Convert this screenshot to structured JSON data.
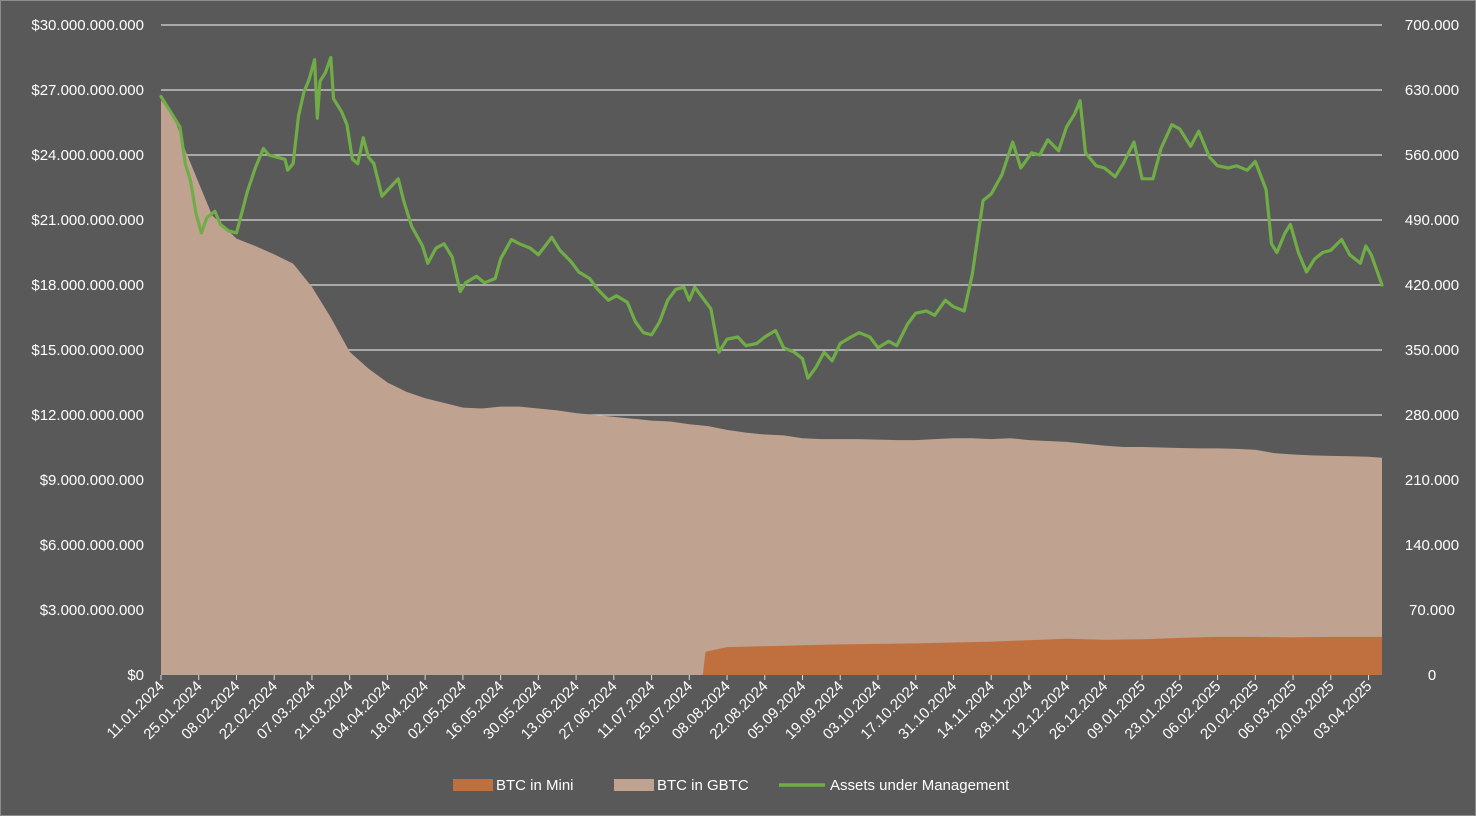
{
  "chart_data": {
    "type": "area",
    "grid": true,
    "legend_position": "bottom",
    "x_tick_labels": [
      "11.01.2024",
      "25.01.2024",
      "08.02.2024",
      "22.02.2024",
      "07.03.2024",
      "21.03.2024",
      "04.04.2024",
      "18.04.2024",
      "02.05.2024",
      "16.05.2024",
      "30.05.2024",
      "13.06.2024",
      "27.06.2024",
      "11.07.2024",
      "25.07.2024",
      "08.08.2024",
      "22.08.2024",
      "05.09.2024",
      "19.09.2024",
      "03.10.2024",
      "17.10.2024",
      "31.10.2024",
      "14.11.2024",
      "28.11.2024",
      "12.12.2024",
      "26.12.2024",
      "09.01.2025",
      "23.01.2025",
      "06.02.2025",
      "20.02.2025",
      "06.03.2025",
      "20.03.2025",
      "03.04.2025"
    ],
    "x_range": [
      "11.01.2024",
      "08.04.2025"
    ],
    "y_left": {
      "min": 0,
      "max": 30000000000,
      "tick_labels": [
        "$0",
        "$3.000.000.000",
        "$6.000.000.000",
        "$9.000.000.000",
        "$12.000.000.000",
        "$15.000.000.000",
        "$18.000.000.000",
        "$21.000.000.000",
        "$24.000.000.000",
        "$27.000.000.000",
        "$30.000.000.000"
      ]
    },
    "y_right": {
      "min": 0,
      "max": 700000,
      "tick_labels": [
        "0",
        "70.000",
        "140.000",
        "210.000",
        "280.000",
        "350.000",
        "420.000",
        "490.000",
        "560.000",
        "630.000",
        "700.000"
      ]
    },
    "series": [
      {
        "name": "BTC in Mini",
        "kind": "area",
        "axis": "right",
        "color": "#c0703e",
        "points": [
          [
            "11.01.2024",
            0
          ],
          [
            "30.07.2024",
            0
          ],
          [
            "31.07.2024",
            25000
          ],
          [
            "08.08.2024",
            30000
          ],
          [
            "22.08.2024",
            31000
          ],
          [
            "05.09.2024",
            32000
          ],
          [
            "19.09.2024",
            33000
          ],
          [
            "03.10.2024",
            33500
          ],
          [
            "17.10.2024",
            34000
          ],
          [
            "31.10.2024",
            35000
          ],
          [
            "14.11.2024",
            36000
          ],
          [
            "28.11.2024",
            37500
          ],
          [
            "12.12.2024",
            39000
          ],
          [
            "26.12.2024",
            38000
          ],
          [
            "09.01.2025",
            38500
          ],
          [
            "23.01.2025",
            40000
          ],
          [
            "06.02.2025",
            41000
          ],
          [
            "20.02.2025",
            41000
          ],
          [
            "06.03.2025",
            40500
          ],
          [
            "20.03.2025",
            41000
          ],
          [
            "08.04.2025",
            41000
          ]
        ]
      },
      {
        "name": "BTC in GBTC",
        "kind": "area",
        "axis": "right",
        "color": "#c0a291",
        "points": [
          [
            "11.01.2024",
            619000
          ],
          [
            "16.01.2024",
            600000
          ],
          [
            "20.01.2024",
            565000
          ],
          [
            "25.01.2024",
            530000
          ],
          [
            "30.01.2024",
            495000
          ],
          [
            "08.02.2024",
            470000
          ],
          [
            "15.02.2024",
            462000
          ],
          [
            "22.02.2024",
            453000
          ],
          [
            "29.02.2024",
            443000
          ],
          [
            "07.03.2024",
            418000
          ],
          [
            "14.03.2024",
            385000
          ],
          [
            "21.03.2024",
            348000
          ],
          [
            "28.03.2024",
            330000
          ],
          [
            "04.04.2024",
            315000
          ],
          [
            "11.04.2024",
            305000
          ],
          [
            "18.04.2024",
            298000
          ],
          [
            "25.04.2024",
            293000
          ],
          [
            "02.05.2024",
            288000
          ],
          [
            "09.05.2024",
            287000
          ],
          [
            "16.05.2024",
            289000
          ],
          [
            "23.05.2024",
            289000
          ],
          [
            "30.05.2024",
            287000
          ],
          [
            "06.06.2024",
            285000
          ],
          [
            "13.06.2024",
            282000
          ],
          [
            "20.06.2024",
            280000
          ],
          [
            "27.06.2024",
            278000
          ],
          [
            "04.07.2024",
            276000
          ],
          [
            "11.07.2024",
            274000
          ],
          [
            "18.07.2024",
            273000
          ],
          [
            "25.07.2024",
            270000
          ],
          [
            "01.08.2024",
            268000
          ],
          [
            "08.08.2024",
            264000
          ],
          [
            "15.08.2024",
            261000
          ],
          [
            "22.08.2024",
            259000
          ],
          [
            "29.08.2024",
            258000
          ],
          [
            "05.09.2024",
            255000
          ],
          [
            "12.09.2024",
            254000
          ],
          [
            "19.09.2024",
            254000
          ],
          [
            "26.09.2024",
            254000
          ],
          [
            "03.10.2024",
            253500
          ],
          [
            "10.10.2024",
            253000
          ],
          [
            "17.10.2024",
            253000
          ],
          [
            "24.10.2024",
            254000
          ],
          [
            "31.10.2024",
            255000
          ],
          [
            "07.11.2024",
            255000
          ],
          [
            "14.11.2024",
            254000
          ],
          [
            "21.11.2024",
            255000
          ],
          [
            "28.11.2024",
            253000
          ],
          [
            "05.12.2024",
            252000
          ],
          [
            "12.12.2024",
            251000
          ],
          [
            "19.12.2024",
            249000
          ],
          [
            "26.12.2024",
            247000
          ],
          [
            "02.01.2025",
            245500
          ],
          [
            "09.01.2025",
            245500
          ],
          [
            "16.01.2025",
            245000
          ],
          [
            "23.01.2025",
            244500
          ],
          [
            "30.01.2025",
            244000
          ],
          [
            "06.02.2025",
            244000
          ],
          [
            "13.02.2025",
            243500
          ],
          [
            "20.02.2025",
            242500
          ],
          [
            "27.02.2025",
            239000
          ],
          [
            "06.03.2025",
            237500
          ],
          [
            "13.03.2025",
            236500
          ],
          [
            "20.03.2025",
            236000
          ],
          [
            "27.03.2025",
            235500
          ],
          [
            "03.04.2025",
            235000
          ],
          [
            "08.04.2025",
            234000
          ]
        ]
      },
      {
        "name": "Assets under Management",
        "kind": "line",
        "axis": "left",
        "color": "#70ad47",
        "points": [
          [
            "11.01.2024",
            26700000000.0
          ],
          [
            "15.01.2024",
            25900000000.0
          ],
          [
            "18.01.2024",
            25300000000.0
          ],
          [
            "20.01.2024",
            23600000000.0
          ],
          [
            "22.01.2024",
            22800000000.0
          ],
          [
            "24.01.2024",
            21300000000.0
          ],
          [
            "26.01.2024",
            20400000000.0
          ],
          [
            "28.01.2024",
            21100000000.0
          ],
          [
            "31.01.2024",
            21400000000.0
          ],
          [
            "02.02.2024",
            20800000000.0
          ],
          [
            "05.02.2024",
            20500000000.0
          ],
          [
            "08.02.2024",
            20400000000.0
          ],
          [
            "12.02.2024",
            22300000000.0
          ],
          [
            "15.02.2024",
            23400000000.0
          ],
          [
            "18.02.2024",
            24300000000.0
          ],
          [
            "20.02.2024",
            24000000000.0
          ],
          [
            "23.02.2024",
            23900000000.0
          ],
          [
            "26.02.2024",
            23800000000.0
          ],
          [
            "27.02.2024",
            23300000000.0
          ],
          [
            "29.02.2024",
            23600000000.0
          ],
          [
            "02.03.2024",
            25800000000.0
          ],
          [
            "04.03.2024",
            26900000000.0
          ],
          [
            "06.03.2024",
            27500000000.0
          ],
          [
            "08.03.2024",
            28400000000.0
          ],
          [
            "09.03.2024",
            25700000000.0
          ],
          [
            "10.03.2024",
            27400000000.0
          ],
          [
            "12.03.2024",
            27800000000.0
          ],
          [
            "14.03.2024",
            28500000000.0
          ],
          [
            "15.03.2024",
            26600000000.0
          ],
          [
            "18.03.2024",
            26000000000.0
          ],
          [
            "20.03.2024",
            25400000000.0
          ],
          [
            "22.03.2024",
            23800000000.0
          ],
          [
            "24.03.2024",
            23600000000.0
          ],
          [
            "26.03.2024",
            24800000000.0
          ],
          [
            "28.03.2024",
            23900000000.0
          ],
          [
            "30.03.2024",
            23600000000.0
          ],
          [
            "02.04.2024",
            22100000000.0
          ],
          [
            "05.04.2024",
            22500000000.0
          ],
          [
            "08.04.2024",
            22900000000.0
          ],
          [
            "10.04.2024",
            21900000000.0
          ],
          [
            "13.04.2024",
            20700000000.0
          ],
          [
            "17.04.2024",
            19800000000.0
          ],
          [
            "19.04.2024",
            19000000000.0
          ],
          [
            "22.04.2024",
            19700000000.0
          ],
          [
            "25.04.2024",
            19900000000.0
          ],
          [
            "28.04.2024",
            19300000000.0
          ],
          [
            "01.05.2024",
            17700000000.0
          ],
          [
            "03.05.2024",
            18100000000.0
          ],
          [
            "07.05.2024",
            18400000000.0
          ],
          [
            "10.05.2024",
            18100000000.0
          ],
          [
            "14.05.2024",
            18300000000.0
          ],
          [
            "16.05.2024",
            19200000000.0
          ],
          [
            "20.05.2024",
            20100000000.0
          ],
          [
            "23.05.2024",
            19900000000.0
          ],
          [
            "27.05.2024",
            19700000000.0
          ],
          [
            "30.05.2024",
            19400000000.0
          ],
          [
            "04.06.2024",
            20200000000.0
          ],
          [
            "07.06.2024",
            19600000000.0
          ],
          [
            "11.06.2024",
            19100000000.0
          ],
          [
            "14.06.2024",
            18600000000.0
          ],
          [
            "18.06.2024",
            18300000000.0
          ],
          [
            "21.06.2024",
            17800000000.0
          ],
          [
            "25.06.2024",
            17300000000.0
          ],
          [
            "28.06.2024",
            17500000000.0
          ],
          [
            "02.07.2024",
            17200000000.0
          ],
          [
            "05.07.2024",
            16300000000.0
          ],
          [
            "08.07.2024",
            15800000000.0
          ],
          [
            "11.07.2024",
            15700000000.0
          ],
          [
            "14.07.2024",
            16300000000.0
          ],
          [
            "17.07.2024",
            17300000000.0
          ],
          [
            "20.07.2024",
            17800000000.0
          ],
          [
            "23.07.2024",
            17900000000.0
          ],
          [
            "25.07.2024",
            17300000000.0
          ],
          [
            "27.07.2024",
            17900000000.0
          ],
          [
            "30.07.2024",
            17400000000.0
          ],
          [
            "02.08.2024",
            16900000000.0
          ],
          [
            "05.08.2024",
            14900000000.0
          ],
          [
            "08.08.2024",
            15500000000.0
          ],
          [
            "12.08.2024",
            15600000000.0
          ],
          [
            "15.08.2024",
            15200000000.0
          ],
          [
            "19.08.2024",
            15300000000.0
          ],
          [
            "22.08.2024",
            15600000000.0
          ],
          [
            "26.08.2024",
            15900000000.0
          ],
          [
            "29.08.2024",
            15100000000.0
          ],
          [
            "02.09.2024",
            14900000000.0
          ],
          [
            "05.09.2024",
            14600000000.0
          ],
          [
            "07.09.2024",
            13700000000.0
          ],
          [
            "10.09.2024",
            14200000000.0
          ],
          [
            "13.09.2024",
            14900000000.0
          ],
          [
            "16.09.2024",
            14500000000.0
          ],
          [
            "19.09.2024",
            15300000000.0
          ],
          [
            "23.09.2024",
            15600000000.0
          ],
          [
            "26.09.2024",
            15800000000.0
          ],
          [
            "30.09.2024",
            15600000000.0
          ],
          [
            "03.10.2024",
            15100000000.0
          ],
          [
            "07.10.2024",
            15400000000.0
          ],
          [
            "10.10.2024",
            15200000000.0
          ],
          [
            "14.10.2024",
            16200000000.0
          ],
          [
            "17.10.2024",
            16700000000.0
          ],
          [
            "21.10.2024",
            16800000000.0
          ],
          [
            "24.10.2024",
            16600000000.0
          ],
          [
            "28.10.2024",
            17300000000.0
          ],
          [
            "31.10.2024",
            17000000000.0
          ],
          [
            "04.11.2024",
            16800000000.0
          ],
          [
            "07.11.2024",
            18500000000.0
          ],
          [
            "11.11.2024",
            21900000000.0
          ],
          [
            "14.11.2024",
            22200000000.0
          ],
          [
            "18.11.2024",
            23100000000.0
          ],
          [
            "22.11.2024",
            24600000000.0
          ],
          [
            "25.11.2024",
            23400000000.0
          ],
          [
            "29.11.2024",
            24100000000.0
          ],
          [
            "02.12.2024",
            24000000000.0
          ],
          [
            "05.12.2024",
            24700000000.0
          ],
          [
            "09.12.2024",
            24200000000.0
          ],
          [
            "12.12.2024",
            25300000000.0
          ],
          [
            "15.12.2024",
            25900000000.0
          ],
          [
            "17.12.2024",
            26500000000.0
          ],
          [
            "19.12.2024",
            24100000000.0
          ],
          [
            "23.12.2024",
            23500000000.0
          ],
          [
            "26.12.2024",
            23400000000.0
          ],
          [
            "30.12.2024",
            23000000000.0
          ],
          [
            "02.01.2025",
            23600000000.0
          ],
          [
            "06.01.2025",
            24600000000.0
          ],
          [
            "09.01.2025",
            22900000000.0
          ],
          [
            "13.01.2025",
            22900000000.0
          ],
          [
            "16.01.2025",
            24300000000.0
          ],
          [
            "20.01.2025",
            25400000000.0
          ],
          [
            "23.01.2025",
            25200000000.0
          ],
          [
            "27.01.2025",
            24400000000.0
          ],
          [
            "30.01.2025",
            25100000000.0
          ],
          [
            "03.02.2025",
            23900000000.0
          ],
          [
            "06.02.2025",
            23500000000.0
          ],
          [
            "10.02.2025",
            23400000000.0
          ],
          [
            "13.02.2025",
            23500000000.0
          ],
          [
            "17.02.2025",
            23300000000.0
          ],
          [
            "20.02.2025",
            23700000000.0
          ],
          [
            "24.02.2025",
            22400000000.0
          ],
          [
            "26.02.2025",
            19900000000.0
          ],
          [
            "28.02.2025",
            19500000000.0
          ],
          [
            "03.03.2025",
            20400000000.0
          ],
          [
            "05.03.2025",
            20800000000.0
          ],
          [
            "08.03.2025",
            19500000000.0
          ],
          [
            "11.03.2025",
            18600000000.0
          ],
          [
            "14.03.2025",
            19200000000.0
          ],
          [
            "17.03.2025",
            19500000000.0
          ],
          [
            "20.03.2025",
            19600000000.0
          ],
          [
            "24.03.2025",
            20100000000.0
          ],
          [
            "27.03.2025",
            19400000000.0
          ],
          [
            "31.03.2025",
            19000000000.0
          ],
          [
            "02.04.2025",
            19800000000.0
          ],
          [
            "04.04.2025",
            19400000000.0
          ],
          [
            "06.04.2025",
            18700000000.0
          ],
          [
            "08.04.2025",
            18000000000.0
          ]
        ]
      }
    ]
  }
}
